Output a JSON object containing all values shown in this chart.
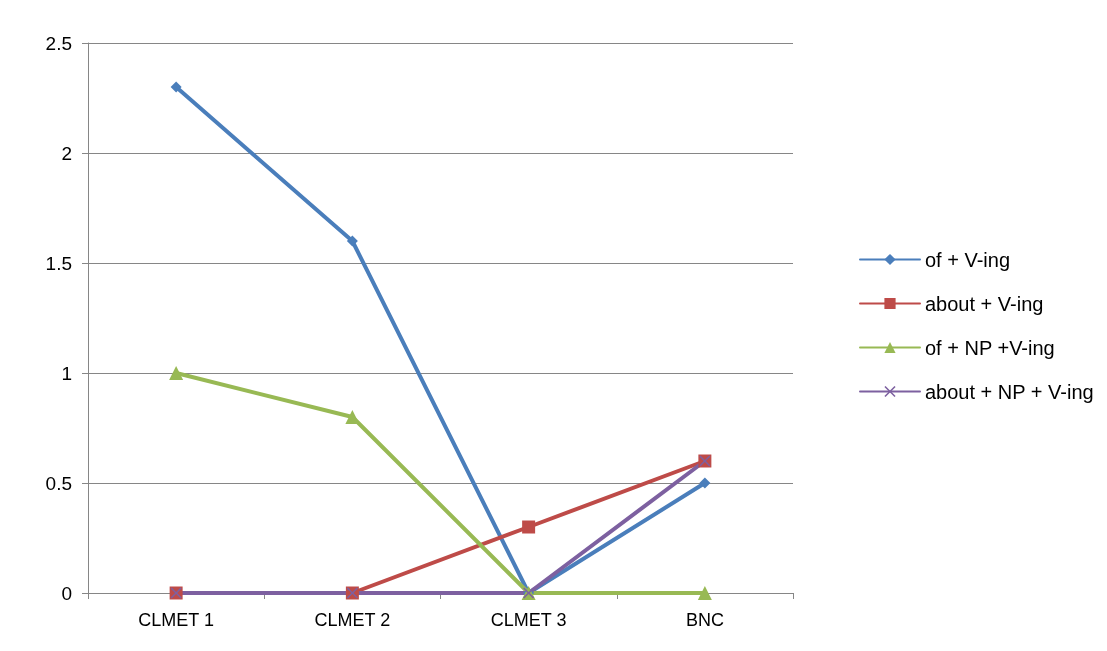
{
  "chart_data": {
    "type": "line",
    "categories": [
      "CLMET 1",
      "CLMET 2",
      "CLMET 3",
      "BNC"
    ],
    "series": [
      {
        "name": "of + V-ing",
        "color": "#4a7ebb",
        "marker": "diamond",
        "values": [
          2.3,
          1.6,
          0,
          0.5
        ]
      },
      {
        "name": "about + V-ing",
        "color": "#be4b48",
        "marker": "square",
        "values": [
          0,
          0,
          0.3,
          0.6
        ]
      },
      {
        "name": "of + NP +V-ing",
        "color": "#98b954",
        "marker": "triangle",
        "values": [
          1,
          0.8,
          0,
          0
        ]
      },
      {
        "name": "about + NP + V-ing",
        "color": "#7d60a0",
        "marker": "cross",
        "values": [
          0,
          0,
          0,
          0.6
        ]
      }
    ],
    "ylim": [
      0,
      2.5
    ],
    "yticks": [
      0,
      0.5,
      1,
      1.5,
      2,
      2.5
    ],
    "grid": "y",
    "legend": "right",
    "line_style": "solid"
  }
}
